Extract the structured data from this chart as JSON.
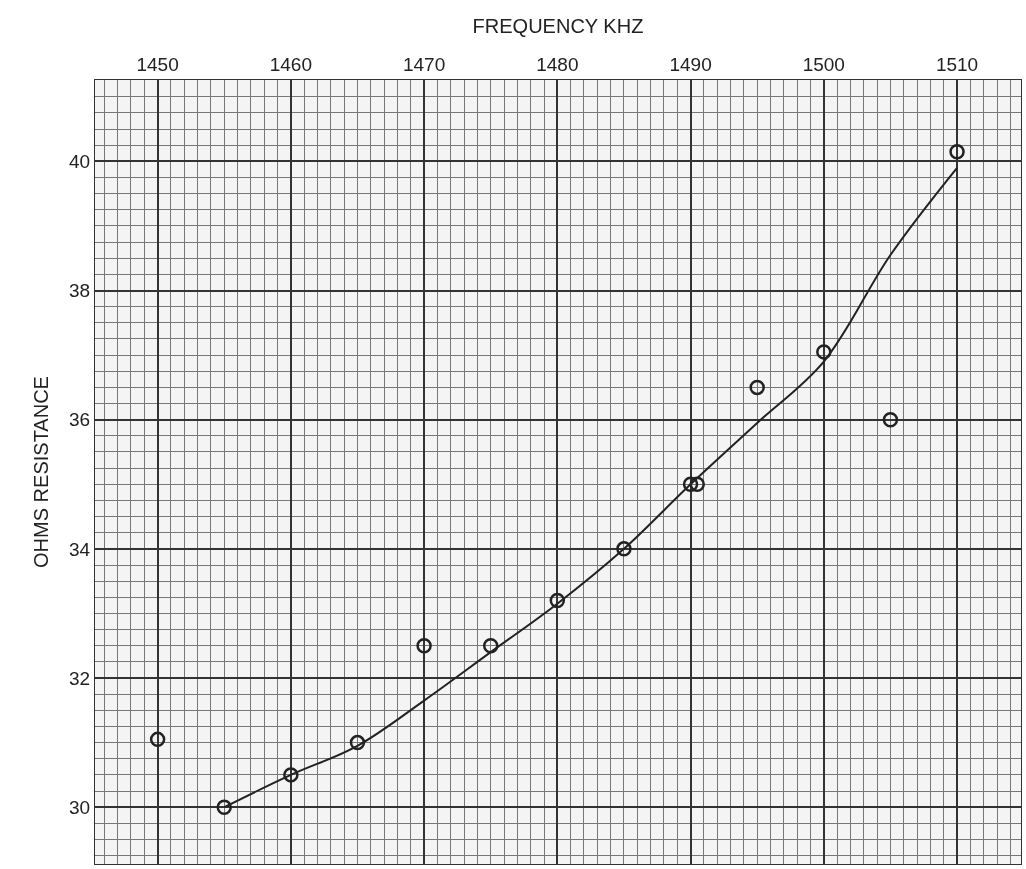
{
  "chart_data": {
    "type": "scatter",
    "xlabel": "FREQUENCY KHZ",
    "ylabel": "OHMS RESISTANCE",
    "xlim": [
      1445.3,
      1514.8
    ],
    "ylim": [
      29.12,
      41.26
    ],
    "xticks": [
      1450,
      1460,
      1470,
      1480,
      1490,
      1500,
      1510
    ],
    "yticks": [
      30,
      32,
      34,
      36,
      38,
      40
    ],
    "grid": true,
    "series": [
      {
        "marker": "circle",
        "color": "#222222",
        "x": [
          1450,
          1455,
          1460,
          1465,
          1470,
          1475,
          1480,
          1485,
          1490,
          1490.5,
          1495,
          1500,
          1505,
          1510
        ],
        "values": [
          31.05,
          30,
          30.5,
          31,
          32.5,
          32.5,
          33.2,
          34,
          35,
          35,
          36.5,
          37.05,
          36,
          40.15
        ]
      },
      {
        "type": "line",
        "color": "#222222",
        "line_style": "solid",
        "x": [
          1455,
          1460,
          1465,
          1470,
          1475,
          1480,
          1485,
          1490,
          1495,
          1500,
          1505,
          1510
        ],
        "values": [
          30,
          30.5,
          30.95,
          31.65,
          32.4,
          33.15,
          34,
          35,
          35.95,
          36.9,
          38.55,
          39.9
        ]
      }
    ]
  }
}
